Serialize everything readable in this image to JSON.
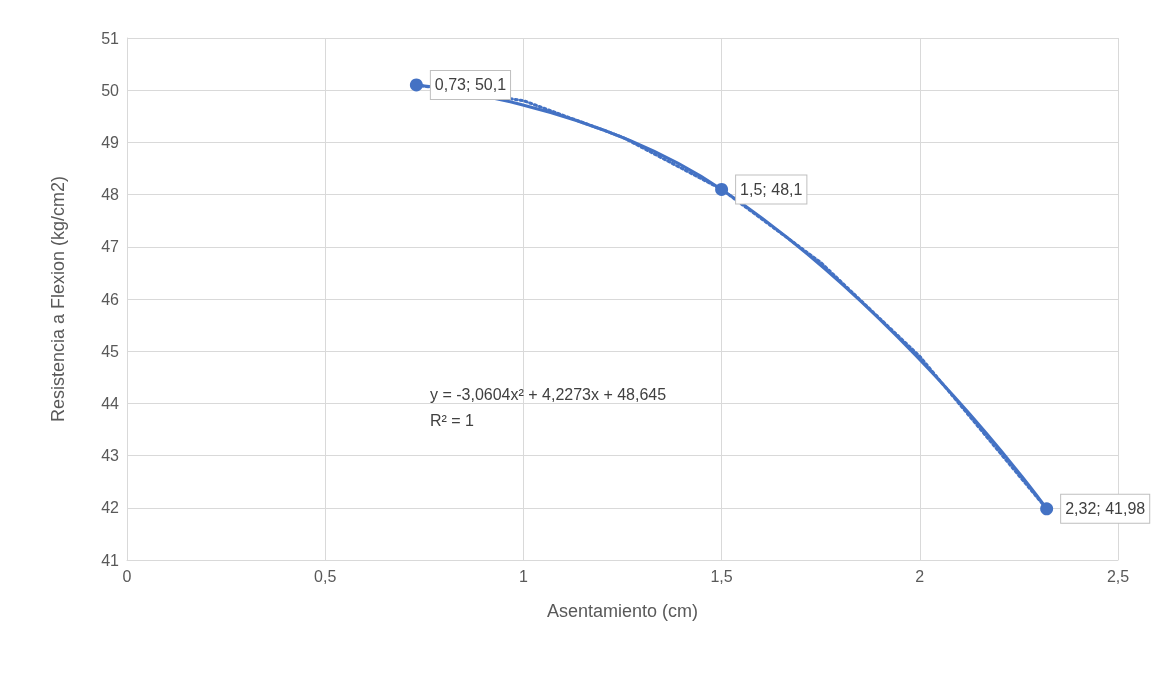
{
  "chart_data": {
    "type": "line",
    "xlabel": "Asentamiento (cm)",
    "ylabel": "Resistencia a Flexion (kg/cm2)",
    "xlim": [
      0,
      2.5
    ],
    "xticks": [
      0,
      {
        "value": 0.5,
        "label": "0,5"
      },
      1,
      {
        "value": 1.5,
        "label": "1,5"
      },
      2,
      {
        "value": 2.5,
        "label": "2,5"
      }
    ],
    "ylim": [
      41,
      51
    ],
    "yticks": [
      41,
      42,
      43,
      44,
      45,
      46,
      47,
      48,
      49,
      50,
      51
    ],
    "grid": true,
    "series": [
      {
        "color": "#4472c4",
        "marker": "circle",
        "line_style": "solid",
        "x": [
          0.73,
          1.5,
          2.32
        ],
        "values": [
          50.1,
          48.1,
          41.98
        ],
        "value_labels": [
          "0,73; 50,1",
          "1,5; 48,1",
          "2,32; 41,98"
        ]
      },
      {
        "color": "#4472c4",
        "marker": "none",
        "line_style": "dotted",
        "x": [
          0.73,
          1,
          1.25,
          1.5,
          1.75,
          2,
          2.32
        ],
        "values": [
          50.1,
          49.8,
          49.1,
          48.1,
          46.7,
          44.9,
          41.98
        ]
      }
    ],
    "annotations": [
      "y = -3,0604x² + 4,2273x + 48,645",
      "R² = 1"
    ]
  }
}
